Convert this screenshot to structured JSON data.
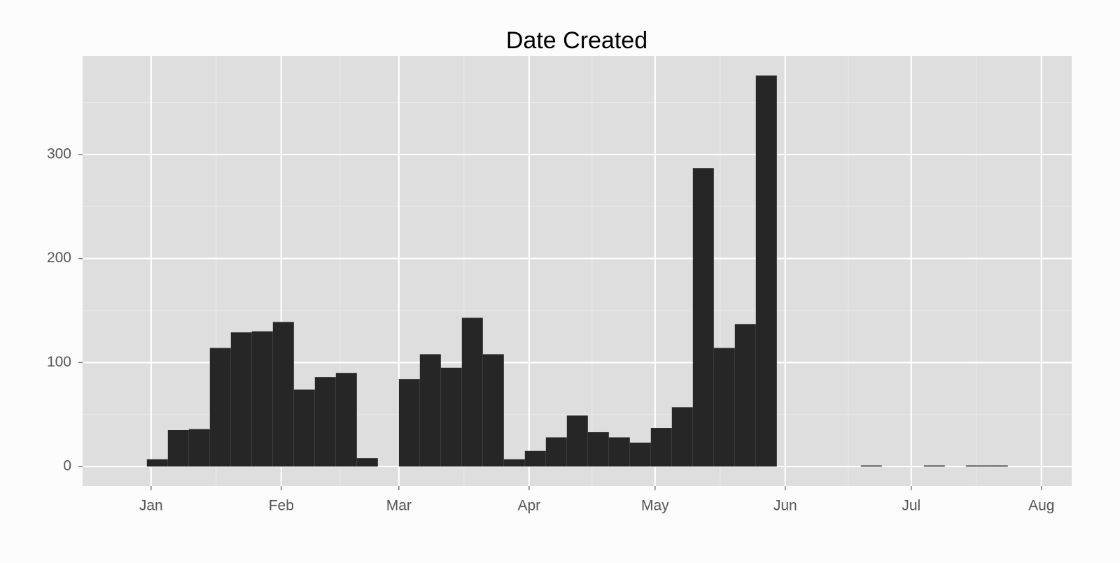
{
  "chart_data": {
    "type": "histogram",
    "title": "Date Created",
    "bins": [
      -1,
      4,
      9,
      14,
      19,
      24,
      29,
      34,
      39,
      44,
      49,
      54,
      59,
      64,
      69,
      74,
      79,
      84,
      89,
      94,
      99,
      104,
      109,
      114,
      119,
      124,
      129,
      134,
      139,
      144,
      149,
      154,
      159,
      164,
      169,
      174,
      179,
      184,
      189,
      194,
      199,
      204
    ],
    "values": [
      7,
      35,
      36,
      114,
      129,
      130,
      139,
      74,
      86,
      90,
      8,
      0,
      84,
      108,
      95,
      143,
      108,
      7,
      15,
      28,
      49,
      33,
      28,
      23,
      37,
      57,
      287,
      114,
      137,
      376,
      0,
      0,
      0,
      0,
      1,
      0,
      0,
      1,
      0,
      1,
      1
    ],
    "color": "#262626",
    "xlim": [
      -16.3,
      219.2
    ],
    "xticks": [
      {
        "value": 0,
        "label": "Jan"
      },
      {
        "value": 31,
        "label": "Feb"
      },
      {
        "value": 59,
        "label": "Mar"
      },
      {
        "value": 90,
        "label": "Apr"
      },
      {
        "value": 120,
        "label": "May"
      },
      {
        "value": 151,
        "label": "Jun"
      },
      {
        "value": 181,
        "label": "Jul"
      },
      {
        "value": 212,
        "label": "Aug"
      }
    ],
    "ylim": [
      -18.8,
      394.8
    ],
    "yticks": [
      0,
      100,
      200,
      300
    ],
    "grid": true
  }
}
